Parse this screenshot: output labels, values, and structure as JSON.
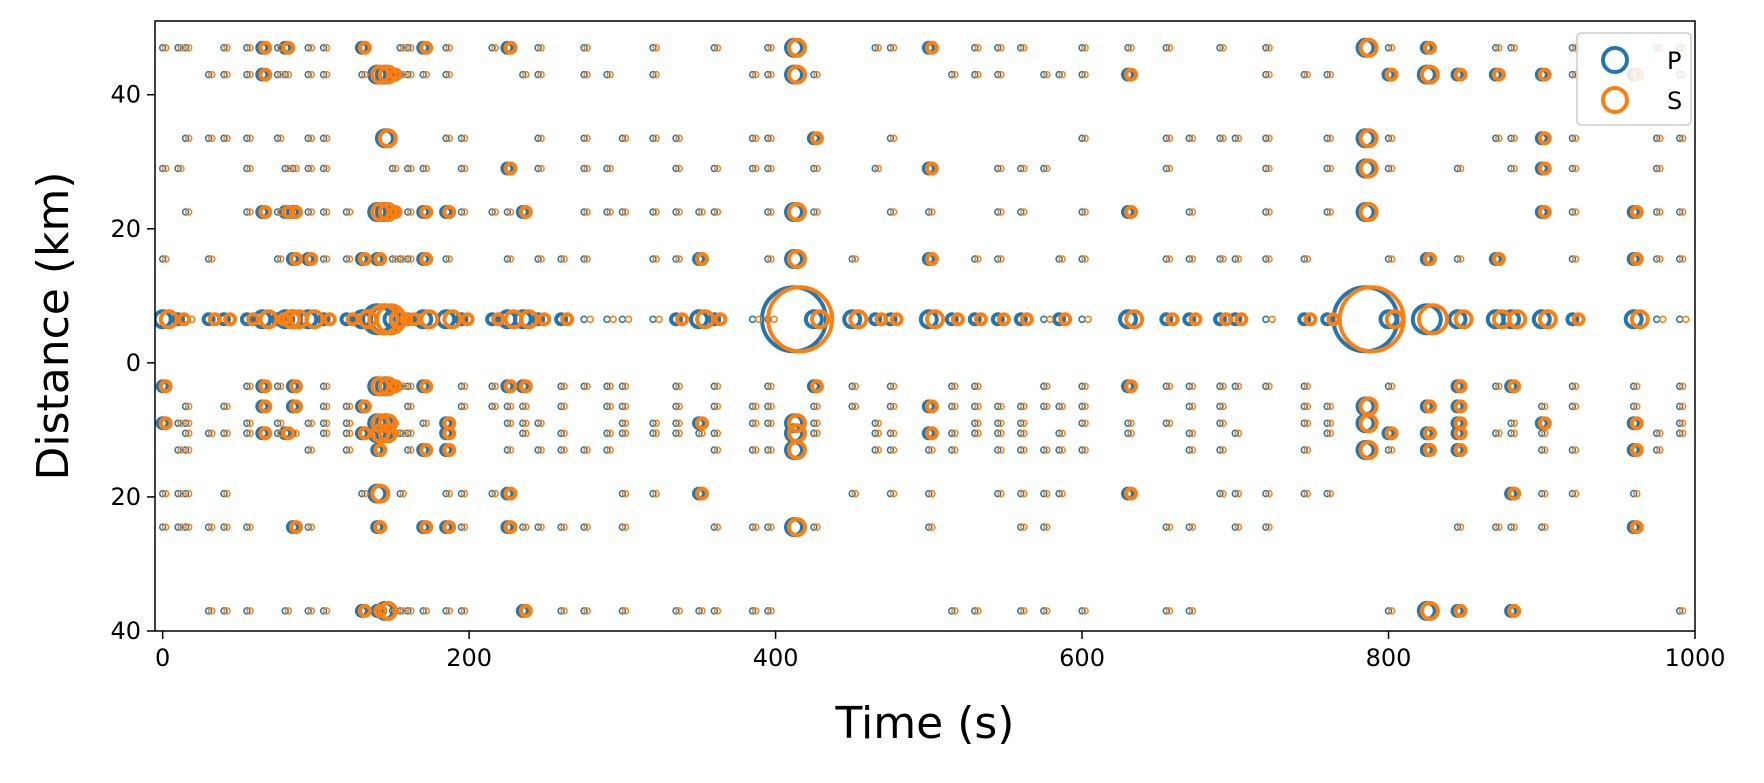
{
  "chart_data": {
    "type": "scatter",
    "title": "",
    "xlabel": "Time (s)",
    "ylabel": "Distance (km)",
    "xlim": [
      -5,
      1000
    ],
    "ylim": [
      -40,
      51
    ],
    "xticks": [
      0,
      200,
      400,
      600,
      800,
      1000
    ],
    "yticks": [
      {
        "value": 40,
        "label": "40"
      },
      {
        "value": 20,
        "label": "20"
      },
      {
        "value": 0,
        "label": "0"
      },
      {
        "value": -20,
        "label": "20"
      },
      {
        "value": -40,
        "label": "40"
      }
    ],
    "grid": false,
    "legend_position": "top-right",
    "station_offsets": [
      47,
      43,
      33.5,
      29,
      22.5,
      15.5,
      6.5,
      -3.5,
      -6.5,
      -9,
      -10.5,
      -13,
      -19.5,
      -24.5,
      -37
    ],
    "event_times": [
      0,
      10,
      15,
      30,
      40,
      55,
      65,
      75,
      80,
      85,
      95,
      105,
      120,
      130,
      140,
      145,
      150,
      155,
      160,
      170,
      185,
      195,
      215,
      225,
      235,
      245,
      260,
      275,
      290,
      300,
      320,
      335,
      350,
      360,
      385,
      395,
      412,
      425,
      450,
      465,
      475,
      500,
      515,
      530,
      545,
      560,
      575,
      585,
      600,
      630,
      655,
      670,
      690,
      700,
      720,
      745,
      760,
      785,
      800,
      825,
      845,
      870,
      880,
      900,
      920,
      960,
      975,
      990
    ],
    "event_sizes": [
      3,
      2,
      1,
      2,
      2,
      2,
      3,
      2,
      3,
      3,
      3,
      2,
      2,
      3,
      4,
      4,
      3,
      2,
      2,
      3,
      3,
      2,
      2,
      3,
      3,
      2,
      2,
      1,
      1,
      1,
      1,
      2,
      3,
      2,
      1,
      1,
      6,
      3,
      3,
      2,
      2,
      3,
      2,
      2,
      2,
      2,
      1,
      2,
      1,
      3,
      2,
      2,
      2,
      2,
      1,
      2,
      2,
      6,
      3,
      4,
      3,
      3,
      3,
      3,
      2,
      3,
      1,
      1
    ],
    "series": [
      {
        "name": "P",
        "color": "#1f77b4",
        "time_shift": 0,
        "marker": "open-circle"
      },
      {
        "name": "S",
        "color": "#ff7f0e",
        "time_shift": 4,
        "marker": "open-circle"
      }
    ],
    "colors": {
      "P": "#1f77b4",
      "S": "#ff7f0e",
      "axes": "#000000",
      "background": "#ffffff"
    }
  }
}
